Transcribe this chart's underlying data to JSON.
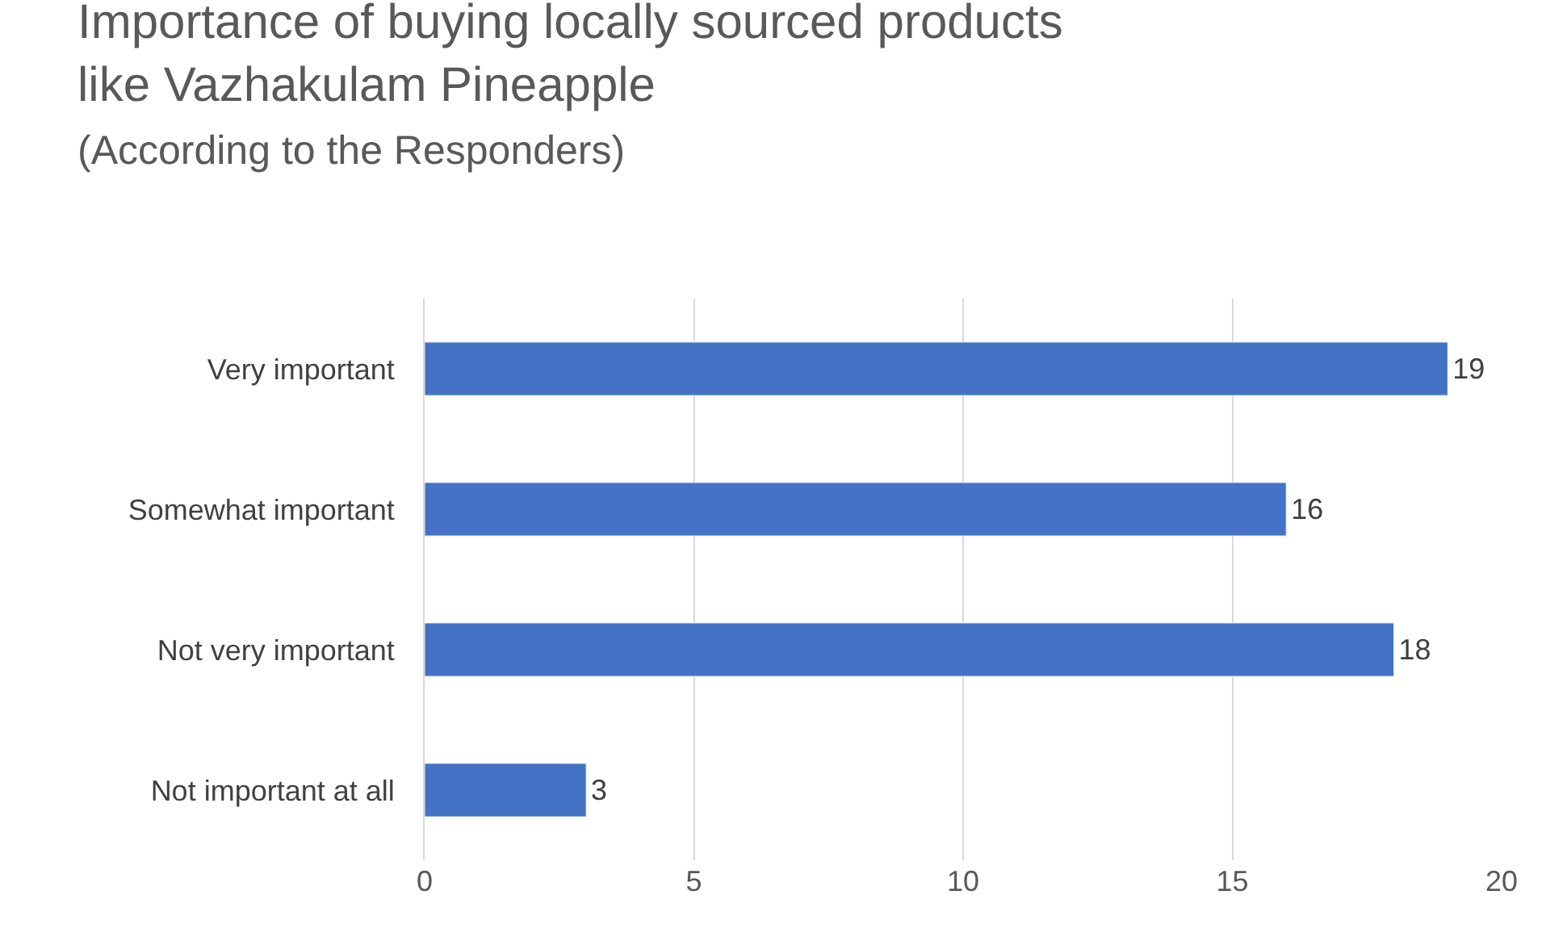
{
  "chart_data": {
    "type": "bar",
    "orientation": "horizontal",
    "title": "Importance of buying locally sourced products like Vazhakulam Pineapple",
    "subtitle": "(According to the Responders)",
    "categories": [
      "Very important",
      "Somewhat important",
      "Not very important",
      "Not important at all"
    ],
    "values": [
      19,
      16,
      18,
      3
    ],
    "color": "#4472c4",
    "data_labels": true,
    "xlim": [
      0,
      20
    ],
    "xticks": [
      0,
      5,
      10,
      15,
      20
    ],
    "grid": "x",
    "legend": false
  }
}
